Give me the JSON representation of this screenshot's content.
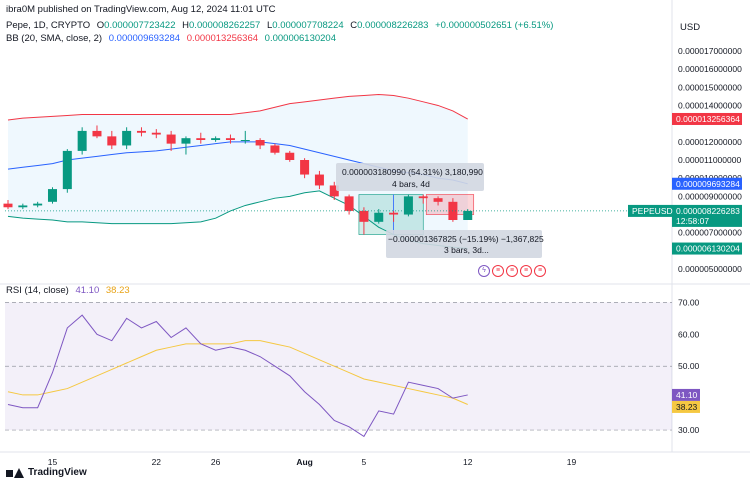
{
  "header": {
    "text": "ibra0M published on TradingView.com, Aug 12, 2024 11:01 UTC"
  },
  "legend": {
    "symbol": "Pepe, 1D, CRYPTO",
    "o_label": "O",
    "o_value": "0.000007723422",
    "h_label": "H",
    "h_value": "0.000008262257",
    "l_label": "L",
    "l_value": "0.000007708224",
    "c_label": "C",
    "c_value": "0.000008226283",
    "change": "+0.000000502651 (+6.51%)",
    "bb_label": "BB (20, SMA, close, 2)",
    "bb_basis": "0.000009693284",
    "bb_upper": "0.000013256364",
    "bb_lower": "0.000006130204"
  },
  "currency": "USD",
  "price_axis": {
    "ticks": [
      "0.000017000000",
      "0.000016000000",
      "0.000015000000",
      "0.000014000000",
      "0.000012000000",
      "0.000011000000",
      "0.000010000000",
      "0.000009000000",
      "0.000007000000",
      "0.000005000000"
    ],
    "tick_values": [
      17,
      16,
      15,
      14,
      12,
      11,
      10,
      9,
      7,
      5
    ],
    "tag_upper": "0.000013256364",
    "tag_basis": "0.000009693284",
    "tag_symbol": "PEPEUSD",
    "tag_price": "0.000008226283",
    "tag_countdown": "12:58:07",
    "tag_lower": "0.000006130204"
  },
  "chart_data": {
    "type": "candlestick",
    "unit": "USD x 1e-6",
    "dates": [
      "Jul 12",
      "Jul 13",
      "Jul 14",
      "Jul 15",
      "Jul 16",
      "Jul 17",
      "Jul 18",
      "Jul 19",
      "Jul 20",
      "Jul 21",
      "Jul 22",
      "Jul 23",
      "Jul 24",
      "Jul 25",
      "Jul 26",
      "Jul 27",
      "Jul 28",
      "Jul 29",
      "Jul 30",
      "Jul 31",
      "Aug 1",
      "Aug 2",
      "Aug 3",
      "Aug 4",
      "Aug 5",
      "Aug 6",
      "Aug 7",
      "Aug 8",
      "Aug 9",
      "Aug 10",
      "Aug 11",
      "Aug 12"
    ],
    "open": [
      8.6,
      8.4,
      8.5,
      8.7,
      9.4,
      11.5,
      12.6,
      12.3,
      11.8,
      12.6,
      12.5,
      12.4,
      11.9,
      12.2,
      12.1,
      12.2,
      12.1,
      12.1,
      11.8,
      11.4,
      11.0,
      10.2,
      9.6,
      9.0,
      8.2,
      7.6,
      8.1,
      8.0,
      9.0,
      8.9,
      8.7,
      7.7
    ],
    "close": [
      8.4,
      8.5,
      8.6,
      9.4,
      11.5,
      12.6,
      12.3,
      11.8,
      12.6,
      12.5,
      12.4,
      11.9,
      12.2,
      12.1,
      12.2,
      12.1,
      12.1,
      11.8,
      11.4,
      11.0,
      10.2,
      9.6,
      9.0,
      8.2,
      7.6,
      8.1,
      8.0,
      9.0,
      8.9,
      8.7,
      7.7,
      8.2
    ],
    "high": [
      8.8,
      8.6,
      8.7,
      9.5,
      11.6,
      12.8,
      12.9,
      12.6,
      12.8,
      12.8,
      12.7,
      12.6,
      12.3,
      12.5,
      12.3,
      12.4,
      12.6,
      12.2,
      11.9,
      11.5,
      11.1,
      10.4,
      9.8,
      9.1,
      8.4,
      8.3,
      8.2,
      9.1,
      9.1,
      9.0,
      8.9,
      8.3
    ],
    "low": [
      8.3,
      8.3,
      8.4,
      8.6,
      9.2,
      11.3,
      12.2,
      11.6,
      11.6,
      12.3,
      12.2,
      11.5,
      11.3,
      11.9,
      12.0,
      11.9,
      11.9,
      11.6,
      11.3,
      10.9,
      10.0,
      9.4,
      8.8,
      8.0,
      6.9,
      7.5,
      7.6,
      7.9,
      8.6,
      8.5,
      7.6,
      7.7
    ],
    "bb_upper": [
      13.2,
      13.3,
      13.35,
      13.4,
      13.45,
      13.5,
      13.5,
      13.5,
      13.5,
      13.5,
      13.5,
      13.5,
      13.5,
      13.5,
      13.5,
      13.5,
      13.6,
      13.7,
      13.9,
      14.1,
      14.2,
      14.3,
      14.4,
      14.5,
      14.55,
      14.6,
      14.55,
      14.4,
      14.2,
      14.0,
      13.7,
      13.25
    ],
    "bb_basis": [
      10.5,
      10.6,
      10.7,
      10.8,
      11.0,
      11.1,
      11.2,
      11.3,
      11.4,
      11.45,
      11.5,
      11.6,
      11.7,
      11.8,
      11.9,
      12.0,
      12.0,
      12.0,
      11.9,
      11.8,
      11.6,
      11.4,
      11.2,
      11.0,
      10.8,
      10.6,
      10.4,
      10.3,
      10.2,
      10.0,
      9.9,
      9.69
    ],
    "bb_lower": [
      7.9,
      7.8,
      7.75,
      7.7,
      7.6,
      7.6,
      7.55,
      7.5,
      7.5,
      7.5,
      7.5,
      7.5,
      7.55,
      7.6,
      7.8,
      8.2,
      8.5,
      8.7,
      8.9,
      9.0,
      9.2,
      9.3,
      8.9,
      8.5,
      7.9,
      7.3,
      6.9,
      6.6,
      6.4,
      6.3,
      6.2,
      6.13
    ],
    "ylim": [
      4.4,
      17.6
    ],
    "rsi": [
      38,
      37,
      37,
      48,
      62,
      66,
      60,
      58,
      65,
      62,
      64,
      59,
      62,
      57,
      55,
      56,
      55,
      53,
      50,
      47,
      42,
      38,
      33,
      31,
      28,
      36,
      35,
      45,
      44,
      43,
      40,
      41
    ],
    "rsi_ma": [
      42,
      41,
      41,
      42,
      43,
      45,
      47,
      49,
      51,
      53,
      55,
      56,
      57,
      57,
      57,
      57,
      58,
      58,
      57,
      56,
      54,
      52,
      50,
      48,
      46,
      45,
      44,
      43,
      42,
      41,
      40,
      38
    ],
    "rsi_ylim": [
      25,
      72
    ]
  },
  "measure_up": {
    "line1": "0.000003180990 (54.31%) 3,180,990",
    "line2": "4 bars, 4d"
  },
  "measure_down": {
    "line1": "−0.000001367825 (−15.19%) −1,367,825",
    "line2": "3 bars, 3d..."
  },
  "rsi": {
    "label": "RSI (14, close)",
    "value": "41.10",
    "ma_value": "38.23",
    "ticks": [
      "70.00",
      "60.00",
      "50.00",
      "30.00"
    ],
    "tick_values": [
      70,
      60,
      50,
      30
    ]
  },
  "x_axis": {
    "labels": [
      "15",
      "22",
      "26",
      "Aug",
      "5",
      "12",
      "19"
    ],
    "label_dates": [
      "Jul 15",
      "Jul 22",
      "Jul 26",
      "Aug 1",
      "Aug 5",
      "Aug 12",
      "Aug 19"
    ]
  },
  "footer": {
    "brand": "TradingView"
  },
  "colors": {
    "up": "#089981",
    "down": "#f23645",
    "bb_basis": "#2962ff",
    "bb_upper": "#f23645",
    "bb_lower": "#089981",
    "rsi": "#7e57c2",
    "rsi_ma": "#f5c842"
  }
}
